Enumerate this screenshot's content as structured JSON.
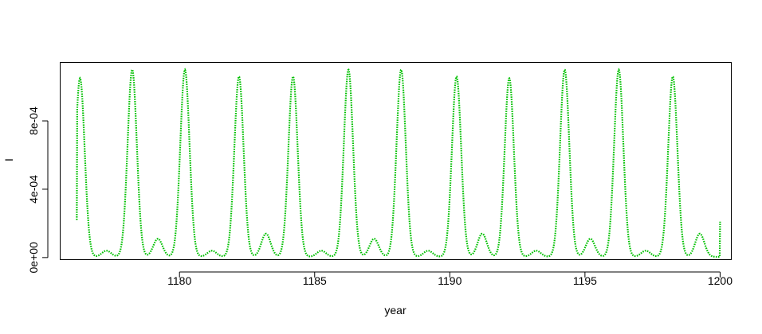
{
  "chart_data": {
    "type": "line",
    "title": "",
    "xlabel": "year",
    "ylabel": "I",
    "xlim": [
      1175.6,
      1200.4
    ],
    "ylim": [
      -1e-05,
      0.00114
    ],
    "x_ticks": [
      1180,
      1185,
      1190,
      1195,
      1200
    ],
    "x_tick_labels": [
      "1180",
      "1185",
      "1190",
      "1195",
      "1200"
    ],
    "y_ticks": [
      0,
      0.0004,
      0.0008
    ],
    "y_tick_labels": [
      "0e+00",
      "4e-04",
      "8e-04"
    ],
    "grid": false,
    "legend": "none",
    "line_style": "dotted",
    "color": "#00C000",
    "baseline": 4e-06,
    "peak_width_years": 0.17,
    "series": [
      {
        "x_start": 1176.2,
        "x_end": 1200.0,
        "y_start": 0.00022,
        "y_end": 0.00021,
        "peaks": [
          {
            "year": 1176.32,
            "value": 0.00105
          },
          {
            "year": 1177.3,
            "value": 4e-05
          },
          {
            "year": 1178.25,
            "value": 0.0011
          },
          {
            "year": 1179.2,
            "value": 0.00011
          },
          {
            "year": 1180.2,
            "value": 0.0011
          },
          {
            "year": 1181.2,
            "value": 4e-05
          },
          {
            "year": 1182.2,
            "value": 0.00106
          },
          {
            "year": 1183.2,
            "value": 0.00014
          },
          {
            "year": 1184.2,
            "value": 0.00106
          },
          {
            "year": 1185.25,
            "value": 4e-05
          },
          {
            "year": 1186.25,
            "value": 0.0011
          },
          {
            "year": 1187.2,
            "value": 0.00011
          },
          {
            "year": 1188.2,
            "value": 0.0011
          },
          {
            "year": 1189.2,
            "value": 4e-05
          },
          {
            "year": 1190.25,
            "value": 0.00106
          },
          {
            "year": 1191.2,
            "value": 0.00014
          },
          {
            "year": 1192.2,
            "value": 0.00105
          },
          {
            "year": 1193.2,
            "value": 4e-05
          },
          {
            "year": 1194.25,
            "value": 0.0011
          },
          {
            "year": 1195.2,
            "value": 0.00011
          },
          {
            "year": 1196.25,
            "value": 0.0011
          },
          {
            "year": 1197.25,
            "value": 4e-05
          },
          {
            "year": 1198.25,
            "value": 0.00106
          },
          {
            "year": 1199.25,
            "value": 0.00014
          }
        ]
      }
    ]
  }
}
